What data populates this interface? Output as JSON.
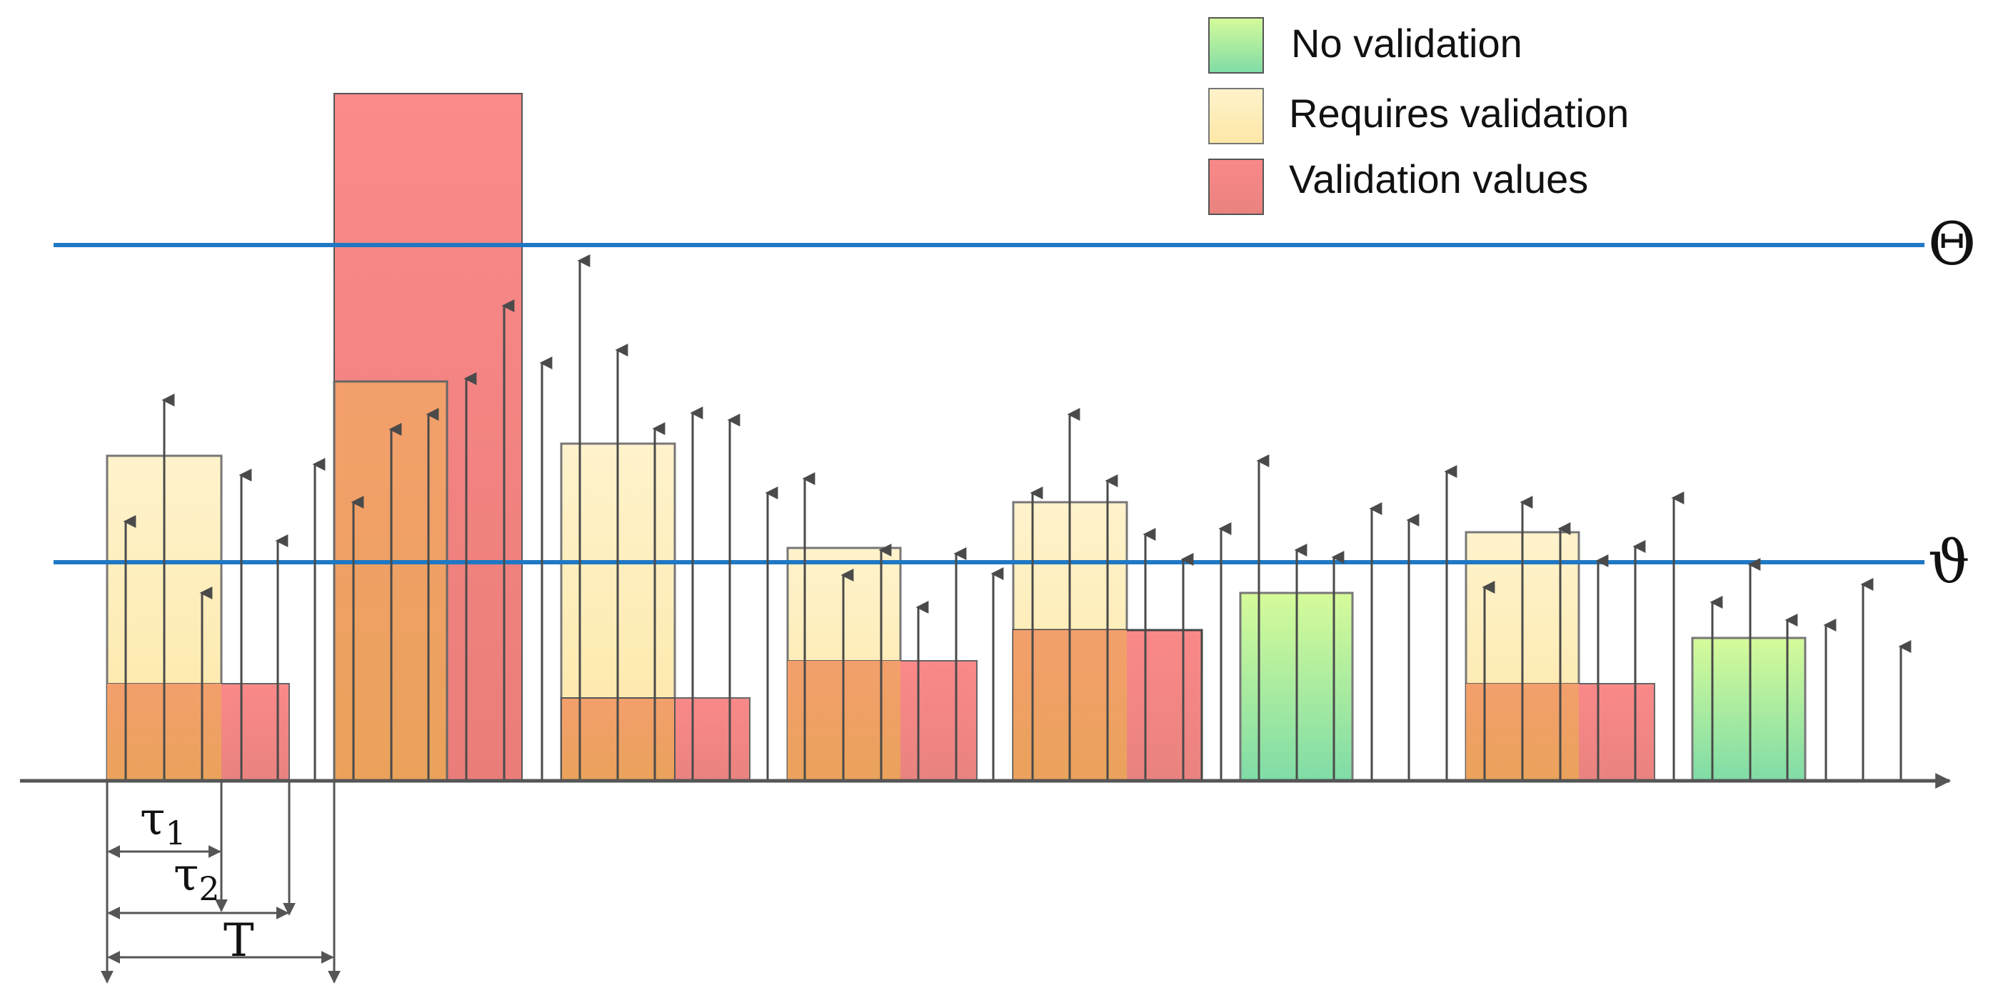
{
  "legend": {
    "no_validation": "No validation",
    "requires_validation": "Requires validation",
    "validation_values": "Validation values"
  },
  "thresholds": {
    "upper_label": "Θ",
    "lower_label": "ϑ"
  },
  "intervals": {
    "tau1_label": "τ",
    "tau1_sub": "1",
    "tau2_label": "τ",
    "tau2_sub": "2",
    "period_label": "T"
  },
  "colors": {
    "green_top": "#d6fb9a",
    "green_bottom": "#7fdca6",
    "yellow_top": "#fff3cc",
    "yellow_bottom": "#fde7a6",
    "red_top": "#f98585",
    "red_bottom": "#e9837f",
    "orange_top": "#f4a06b",
    "orange_bottom": "#eaa15c",
    "threshold_line": "#1f78c3",
    "axis": "#444444",
    "arrow": "#4a4a4a"
  }
}
